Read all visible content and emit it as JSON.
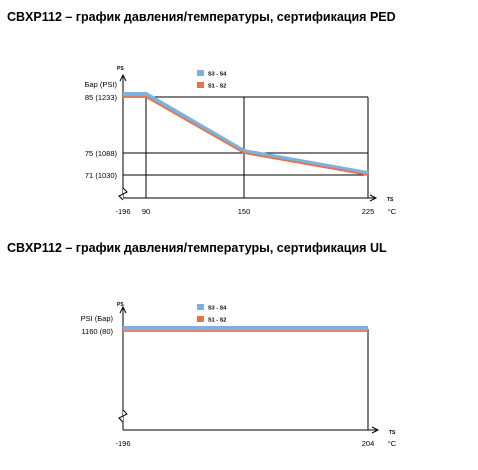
{
  "chart_data": [
    {
      "type": "line",
      "title": "CBXP112 – график давления/температуры, сертификация PED",
      "y_axis_symbol": "PS",
      "x_axis_symbol": "TS",
      "y_unit_label": "Бар (PSI)",
      "x_unit_label": "°C",
      "x_ticks": [
        "-196",
        "90",
        "150",
        "225"
      ],
      "y_ticks": [
        "85 (1233)",
        "75 (1088)",
        "71 (1030)"
      ],
      "series": [
        {
          "name": "S3 - S4",
          "color": "#7cb2dd",
          "x": [
            -196,
            90,
            150,
            225
          ],
          "y": [
            85.5,
            85.5,
            75.3,
            71.3
          ]
        },
        {
          "name": "S1 - S2",
          "color": "#e8734a",
          "x": [
            -196,
            90,
            150,
            225
          ],
          "y": [
            85,
            85,
            75,
            71
          ]
        }
      ]
    },
    {
      "type": "line",
      "title": "CBXP112 – график давления/температуры, сертификация UL",
      "y_axis_symbol": "PS",
      "x_axis_symbol": "TS",
      "y_unit_label": "PSI   (Бар)",
      "x_unit_label": "°C",
      "x_ticks": [
        "-196",
        "204"
      ],
      "y_ticks": [
        "1160   (80)"
      ],
      "series": [
        {
          "name": "S3 - S4",
          "color": "#7cb2dd",
          "x": [
            -196,
            204
          ],
          "y": [
            1170,
            1170
          ]
        },
        {
          "name": "S1 - S2",
          "color": "#e8734a",
          "x": [
            -196,
            204
          ],
          "y": [
            1160,
            1160
          ]
        }
      ]
    }
  ]
}
